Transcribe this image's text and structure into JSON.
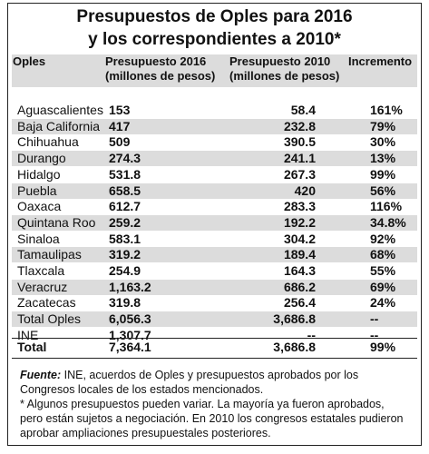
{
  "title": {
    "line1": "Presupuestos de Oples para 2016",
    "line2": "y los correspondientes a 2010*"
  },
  "header": {
    "col0": "Oples",
    "col1": "Presupuesto 2016",
    "col1_sub": "(millones de pesos)",
    "col2": "Presupuesto 2010",
    "col2_sub": "(millones de pesos)",
    "col3": "Incremento"
  },
  "rows": [
    {
      "name": "Aguascalientes",
      "v2016": "153",
      "v2010": "58.4",
      "inc": "161%"
    },
    {
      "name": "Baja California",
      "v2016": "417",
      "v2010": "232.8",
      "inc": "79%"
    },
    {
      "name": "Chihuahua",
      "v2016": "509",
      "v2010": "390.5",
      "inc": "30%"
    },
    {
      "name": "Durango",
      "v2016": "274.3",
      "v2010": "241.1",
      "inc": "13%"
    },
    {
      "name": "Hidalgo",
      "v2016": "531.8",
      "v2010": "267.3",
      "inc": "99%"
    },
    {
      "name": "Puebla",
      "v2016": "658.5",
      "v2010": "420",
      "inc": "56%"
    },
    {
      "name": "Oaxaca",
      "v2016": "612.7",
      "v2010": "283.3",
      "inc": "116%"
    },
    {
      "name": "Quintana Roo",
      "v2016": "259.2",
      "v2010": "192.2",
      "inc": "34.8%"
    },
    {
      "name": "Sinaloa",
      "v2016": "583.1",
      "v2010": "304.2",
      "inc": "92%"
    },
    {
      "name": "Tamaulipas",
      "v2016": "319.2",
      "v2010": "189.4",
      "inc": "68%"
    },
    {
      "name": "Tlaxcala",
      "v2016": "254.9",
      "v2010": "164.3",
      "inc": "55%"
    },
    {
      "name": "Veracruz",
      "v2016": "1,163.2",
      "v2010": "686.2",
      "inc": "69%"
    },
    {
      "name": "Zacatecas",
      "v2016": "319.8",
      "v2010": "256.4",
      "inc": "24%"
    },
    {
      "name": "Total Oples",
      "v2016": "6,056.3",
      "v2010": "3,686.8",
      "inc": "--"
    },
    {
      "name": "INE",
      "v2016": "1,307.7",
      "v2010": "--",
      "inc": "--"
    }
  ],
  "total": {
    "name": "Total",
    "v2016": "7,364.1",
    "v2010": "3,686.8",
    "inc": "99%"
  },
  "notes": {
    "source_label": "Fuente:",
    "source_text": " INE, acuerdos de Oples y presupuestos aprobados por los Congresos locales de los estados mencionados.",
    "footnote": "* Algunos presupuestos pueden variar. La mayoría ya fueron aprobados, pero están sujetos a negociación. En 2010 los congresos estatales pudieron aprobar ampliaciones presupuestales posteriores."
  }
}
